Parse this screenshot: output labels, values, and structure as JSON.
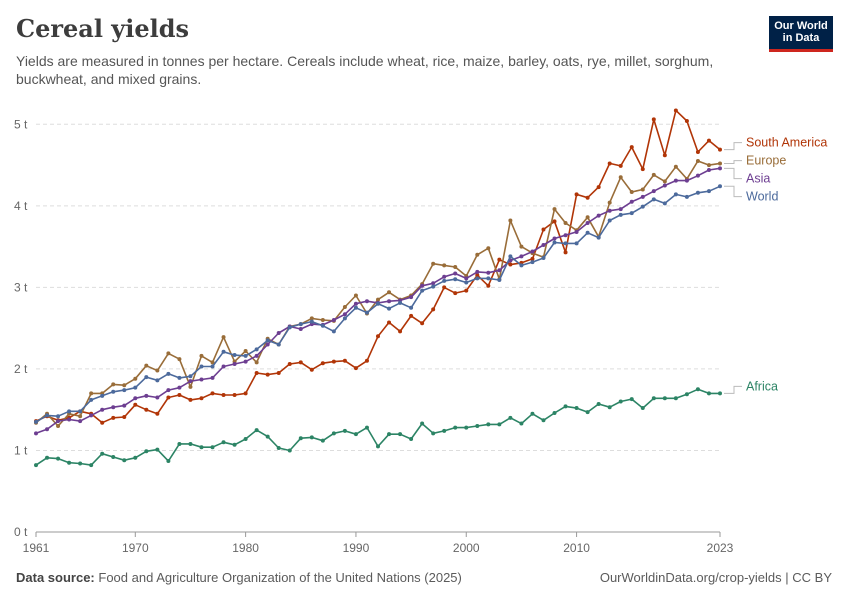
{
  "header": {
    "title": "Cereal yields",
    "subtitle": "Yields are measured in tonnes per hectare. Cereals include wheat, rice, maize, barley, oats, rye, millet, sorghum, buckwheat, and mixed grains."
  },
  "logo": {
    "line1": "Our World",
    "line2": "in Data",
    "bg_color": "#002147",
    "accent_color": "#ce261e"
  },
  "footer": {
    "source_label": "Data source:",
    "source_text": "Food and Agriculture Organization of the United Nations (2025)",
    "url": "OurWorldinData.org/crop-yields | CC BY"
  },
  "chart_data": {
    "type": "line",
    "title": "Cereal yields",
    "xlabel": "",
    "ylabel": "",
    "xlim": [
      1961,
      2023
    ],
    "ylim": [
      0,
      5.2
    ],
    "grid": true,
    "legend": "right (labels at line ends)",
    "x_ticks": [
      1961,
      1970,
      1980,
      1990,
      2000,
      2010,
      2023
    ],
    "x_tick_labels": [
      "1961",
      "1970",
      "1980",
      "1990",
      "2000",
      "2010",
      "2023"
    ],
    "y_ticks": [
      0,
      1,
      2,
      3,
      4,
      5
    ],
    "y_tick_labels": [
      "0 t",
      "1 t",
      "2 t",
      "3 t",
      "4 t",
      "5 t"
    ],
    "x": [
      1961,
      1962,
      1963,
      1964,
      1965,
      1966,
      1967,
      1968,
      1969,
      1970,
      1971,
      1972,
      1973,
      1974,
      1975,
      1976,
      1977,
      1978,
      1979,
      1980,
      1981,
      1982,
      1983,
      1984,
      1985,
      1986,
      1987,
      1988,
      1989,
      1990,
      1991,
      1992,
      1993,
      1994,
      1995,
      1996,
      1997,
      1998,
      1999,
      2000,
      2001,
      2002,
      2003,
      2004,
      2005,
      2006,
      2007,
      2008,
      2009,
      2010,
      2011,
      2012,
      2013,
      2014,
      2015,
      2016,
      2017,
      2018,
      2019,
      2020,
      2021,
      2022,
      2023
    ],
    "series": [
      {
        "name": "South America",
        "color": "#b13507",
        "values": [
          1.36,
          1.42,
          1.37,
          1.4,
          1.48,
          1.45,
          1.34,
          1.4,
          1.41,
          1.56,
          1.5,
          1.45,
          1.65,
          1.68,
          1.62,
          1.64,
          1.7,
          1.68,
          1.68,
          1.7,
          1.95,
          1.93,
          1.95,
          2.06,
          2.08,
          1.99,
          2.07,
          2.09,
          2.1,
          2.01,
          2.1,
          2.4,
          2.57,
          2.46,
          2.65,
          2.56,
          2.73,
          3.0,
          2.93,
          2.96,
          3.15,
          3.02,
          3.34,
          3.28,
          3.3,
          3.35,
          3.71,
          3.81,
          3.43,
          4.14,
          4.1,
          4.23,
          4.52,
          4.49,
          4.72,
          4.45,
          5.06,
          4.62,
          5.17,
          5.04,
          4.66,
          4.8,
          4.69
        ]
      },
      {
        "name": "Europe",
        "color": "#996d39",
        "values": [
          1.34,
          1.45,
          1.3,
          1.45,
          1.42,
          1.7,
          1.7,
          1.81,
          1.8,
          1.88,
          2.04,
          1.98,
          2.19,
          2.12,
          1.78,
          2.16,
          2.08,
          2.39,
          2.09,
          2.22,
          2.08,
          2.37,
          2.3,
          2.52,
          2.55,
          2.62,
          2.6,
          2.59,
          2.76,
          2.9,
          2.68,
          2.85,
          2.94,
          2.85,
          2.9,
          3.04,
          3.29,
          3.27,
          3.25,
          3.14,
          3.4,
          3.48,
          3.1,
          3.82,
          3.5,
          3.42,
          3.37,
          3.96,
          3.79,
          3.7,
          3.86,
          3.62,
          4.04,
          4.35,
          4.17,
          4.2,
          4.38,
          4.3,
          4.48,
          4.33,
          4.55,
          4.5,
          4.52
        ]
      },
      {
        "name": "Asia",
        "color": "#6d3e91",
        "values": [
          1.21,
          1.26,
          1.36,
          1.38,
          1.36,
          1.43,
          1.5,
          1.53,
          1.55,
          1.64,
          1.67,
          1.65,
          1.74,
          1.77,
          1.85,
          1.87,
          1.89,
          2.03,
          2.06,
          2.09,
          2.16,
          2.3,
          2.44,
          2.52,
          2.49,
          2.55,
          2.54,
          2.6,
          2.67,
          2.8,
          2.83,
          2.81,
          2.83,
          2.84,
          2.88,
          3.02,
          3.05,
          3.13,
          3.17,
          3.11,
          3.19,
          3.18,
          3.21,
          3.33,
          3.38,
          3.44,
          3.52,
          3.6,
          3.64,
          3.68,
          3.79,
          3.88,
          3.94,
          3.96,
          4.05,
          4.11,
          4.18,
          4.25,
          4.31,
          4.31,
          4.37,
          4.44,
          4.46
        ]
      },
      {
        "name": "World",
        "color": "#4c6a9c",
        "values": [
          1.35,
          1.43,
          1.42,
          1.48,
          1.48,
          1.62,
          1.67,
          1.72,
          1.74,
          1.77,
          1.9,
          1.86,
          1.94,
          1.89,
          1.91,
          2.03,
          2.03,
          2.21,
          2.17,
          2.16,
          2.24,
          2.35,
          2.3,
          2.51,
          2.55,
          2.58,
          2.53,
          2.46,
          2.62,
          2.75,
          2.69,
          2.8,
          2.74,
          2.81,
          2.75,
          2.96,
          3.01,
          3.08,
          3.1,
          3.06,
          3.11,
          3.11,
          3.09,
          3.38,
          3.27,
          3.31,
          3.36,
          3.55,
          3.54,
          3.54,
          3.67,
          3.61,
          3.82,
          3.89,
          3.91,
          3.99,
          4.08,
          4.03,
          4.14,
          4.11,
          4.16,
          4.18,
          4.24
        ]
      },
      {
        "name": "Africa",
        "color": "#2c8465",
        "values": [
          0.82,
          0.91,
          0.9,
          0.85,
          0.84,
          0.82,
          0.96,
          0.92,
          0.88,
          0.91,
          0.99,
          1.01,
          0.87,
          1.08,
          1.08,
          1.04,
          1.04,
          1.1,
          1.07,
          1.14,
          1.25,
          1.17,
          1.03,
          1.0,
          1.15,
          1.16,
          1.12,
          1.21,
          1.24,
          1.2,
          1.28,
          1.05,
          1.2,
          1.2,
          1.14,
          1.33,
          1.21,
          1.24,
          1.28,
          1.28,
          1.3,
          1.32,
          1.32,
          1.4,
          1.33,
          1.45,
          1.37,
          1.46,
          1.54,
          1.52,
          1.47,
          1.57,
          1.53,
          1.6,
          1.63,
          1.52,
          1.64,
          1.64,
          1.64,
          1.69,
          1.75,
          1.7,
          1.7
        ]
      }
    ]
  }
}
